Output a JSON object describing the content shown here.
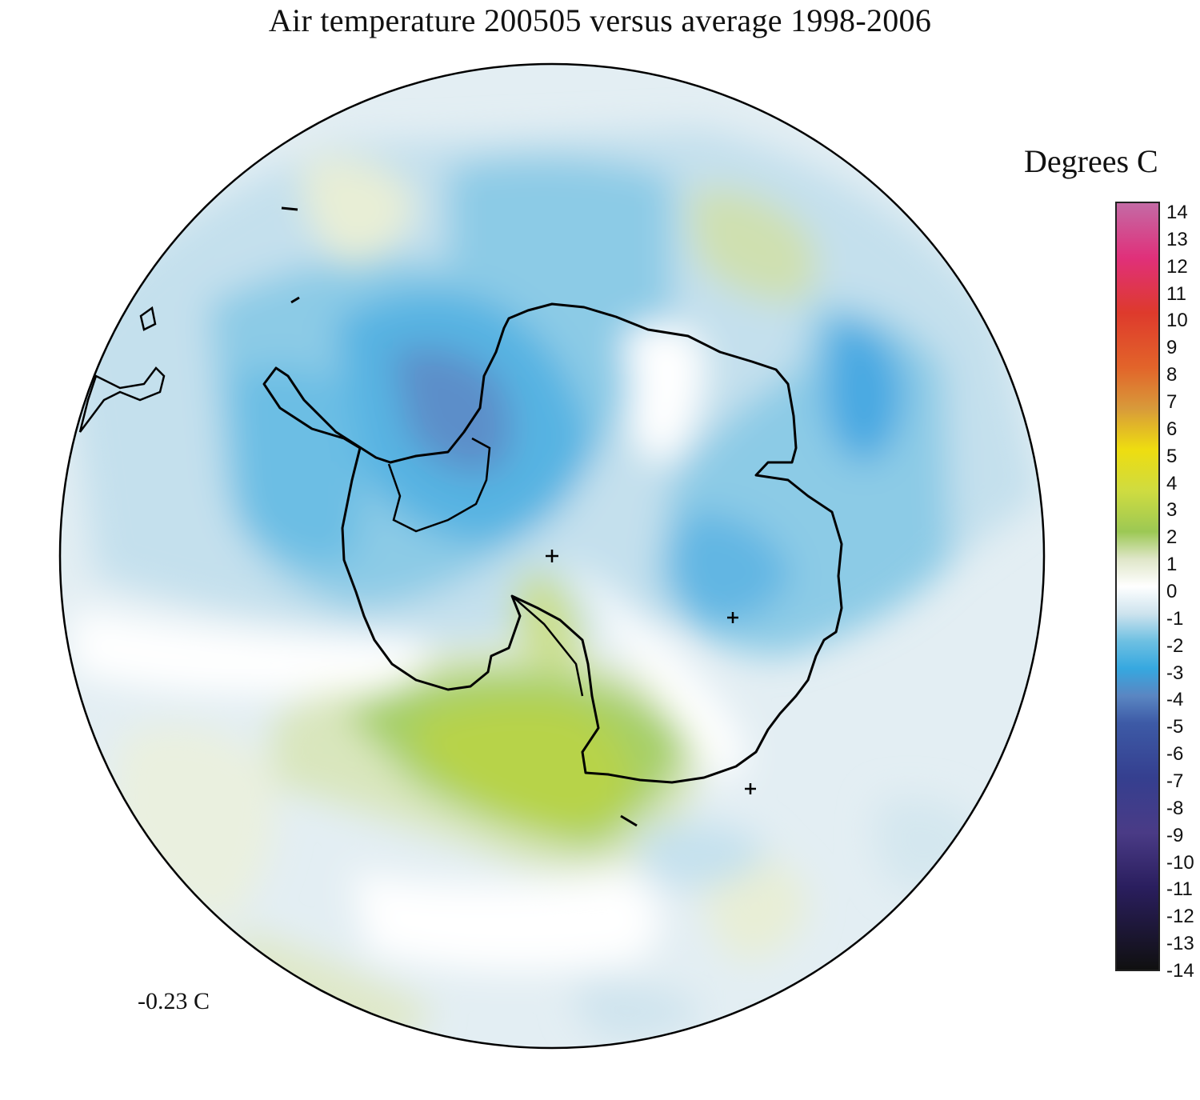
{
  "title": "Air temperature 200505 versus average 1998-2006",
  "units": "Degrees C",
  "mean_label": "-0.23 C",
  "colorbar": {
    "ticks": [
      "14",
      "13",
      "12",
      "11",
      "10",
      "9",
      "8",
      "7",
      "6",
      "5",
      "4",
      "3",
      "2",
      "1",
      "0",
      "-1",
      "-2",
      "-3",
      "-4",
      "-5",
      "-6",
      "-7",
      "-8",
      "-9",
      "-10",
      "-11",
      "-12",
      "-13",
      "-14"
    ],
    "range": [
      -14,
      14
    ],
    "stops": [
      {
        "v": 14,
        "color": "#c46aa5"
      },
      {
        "v": 12,
        "color": "#e0307a"
      },
      {
        "v": 10,
        "color": "#de3a2c"
      },
      {
        "v": 8,
        "color": "#e2642a"
      },
      {
        "v": 6.5,
        "color": "#d89a3a"
      },
      {
        "v": 5,
        "color": "#eedd10"
      },
      {
        "v": 3.5,
        "color": "#cfdc40"
      },
      {
        "v": 2,
        "color": "#9cc854"
      },
      {
        "v": 1,
        "color": "#dfe6c8"
      },
      {
        "v": 0,
        "color": "#ffffff"
      },
      {
        "v": -1,
        "color": "#cde3ee"
      },
      {
        "v": -2,
        "color": "#6ec0e2"
      },
      {
        "v": -3,
        "color": "#36a8e0"
      },
      {
        "v": -4,
        "color": "#5a86c2"
      },
      {
        "v": -5,
        "color": "#3d5aa6"
      },
      {
        "v": -7,
        "color": "#353f8f"
      },
      {
        "v": -9,
        "color": "#4a3b86"
      },
      {
        "v": -11,
        "color": "#2a1e5e"
      },
      {
        "v": -14,
        "color": "#101010"
      }
    ]
  }
}
